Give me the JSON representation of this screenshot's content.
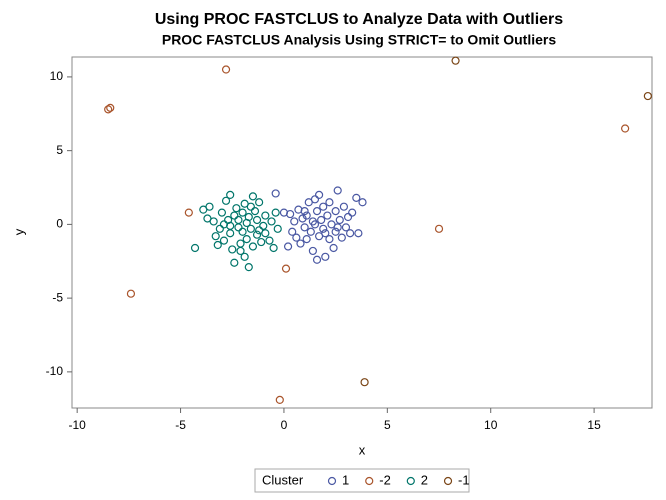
{
  "chart_data": {
    "type": "scatter",
    "title": "Using PROC FASTCLUS to Analyze Data with Outliers",
    "subtitle": "PROC FASTCLUS Analysis Using STRICT= to Omit Outliers",
    "x_label": "x",
    "y_label": "y",
    "legend_title": "Cluster",
    "xlim": [
      -10.25,
      17.8
    ],
    "ylim": [
      -12.45,
      11.35
    ],
    "xticks": [
      -10,
      -5,
      0,
      5,
      10,
      15
    ],
    "yticks": [
      -10,
      -5,
      0,
      5,
      10
    ],
    "series": [
      {
        "name": "1",
        "color": "#4a58a3",
        "x": [
          -0.4,
          0.0,
          0.3,
          0.2,
          0.5,
          0.6,
          0.7,
          0.8,
          0.9,
          1.0,
          1.1,
          1.1,
          1.2,
          1.3,
          1.4,
          1.4,
          1.5,
          1.6,
          1.6,
          1.7,
          1.7,
          1.8,
          1.9,
          1.9,
          2.0,
          2.1,
          2.2,
          2.2,
          2.3,
          2.4,
          2.5,
          2.5,
          2.6,
          2.7,
          2.8,
          2.9,
          3.0,
          3.1,
          3.3,
          3.5,
          3.6,
          3.8,
          0.4,
          1.0,
          2.0,
          2.6,
          3.2,
          1.5
        ],
        "values": [
          2.1,
          0.8,
          0.7,
          -1.5,
          0.2,
          -0.9,
          1.0,
          -1.3,
          0.4,
          -0.2,
          0.6,
          -1.0,
          1.5,
          -0.5,
          0.2,
          -1.8,
          1.7,
          -2.4,
          0.9,
          -0.8,
          2.0,
          0.3,
          -0.3,
          1.2,
          -2.2,
          0.6,
          -1.0,
          1.5,
          0.0,
          -1.6,
          0.9,
          -0.5,
          2.3,
          0.3,
          -0.9,
          1.2,
          -0.2,
          0.5,
          0.8,
          1.8,
          -0.6,
          1.5,
          -0.5,
          0.9,
          -0.6,
          -0.2,
          -0.6,
          0.0
        ]
      },
      {
        "name": "-2",
        "color": "#a9542b",
        "x": [
          -8.5,
          -8.4,
          -2.8,
          -4.6,
          -7.4,
          0.1,
          -0.2,
          7.5,
          16.5
        ],
        "values": [
          7.8,
          7.9,
          10.5,
          0.8,
          -4.7,
          -3.0,
          -11.9,
          -0.3,
          6.5
        ]
      },
      {
        "name": "2",
        "color": "#00756a",
        "x": [
          -4.3,
          -3.9,
          -3.7,
          -3.6,
          -3.4,
          -3.3,
          -3.1,
          -3.0,
          -2.9,
          -2.8,
          -2.7,
          -2.6,
          -2.6,
          -2.5,
          -2.4,
          -2.4,
          -2.3,
          -2.2,
          -2.2,
          -2.1,
          -2.0,
          -2.0,
          -1.9,
          -1.9,
          -1.8,
          -1.8,
          -1.7,
          -1.7,
          -1.6,
          -1.5,
          -1.5,
          -1.4,
          -1.3,
          -1.3,
          -1.2,
          -1.1,
          -1.0,
          -0.9,
          -0.9,
          -0.7,
          -0.6,
          -0.5,
          -0.4,
          -0.3,
          -2.6,
          -3.2,
          -2.1,
          -1.2,
          -2.9,
          -1.6
        ],
        "values": [
          -1.6,
          1.0,
          0.4,
          1.2,
          0.2,
          -0.8,
          -0.3,
          0.8,
          -1.1,
          1.6,
          0.3,
          2.0,
          -0.6,
          -1.7,
          0.6,
          -2.6,
          1.1,
          -0.2,
          0.3,
          -1.3,
          0.8,
          -0.5,
          1.4,
          -2.2,
          0.1,
          -1.0,
          0.5,
          -2.9,
          -0.3,
          1.9,
          -1.5,
          0.9,
          -0.7,
          0.3,
          1.5,
          -1.2,
          -0.1,
          0.6,
          -0.6,
          -1.1,
          0.2,
          -1.6,
          0.8,
          -0.3,
          -0.1,
          -1.4,
          -1.8,
          -0.4,
          0.0,
          1.2
        ]
      },
      {
        "name": "-1",
        "color": "#7a4516",
        "x": [
          8.3,
          17.6,
          3.9
        ],
        "values": [
          11.1,
          8.7,
          -10.7
        ]
      }
    ]
  }
}
